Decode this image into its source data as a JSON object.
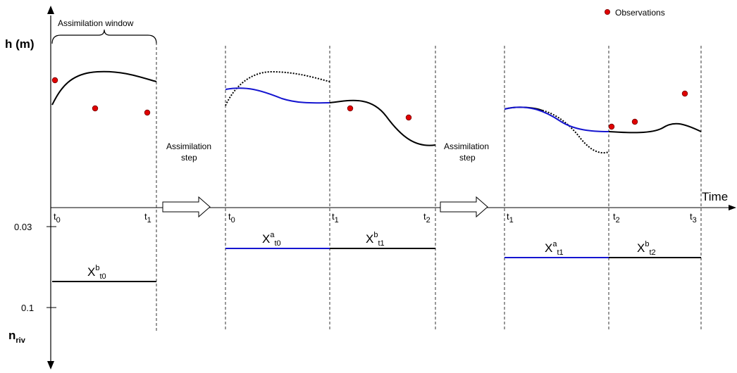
{
  "legend": {
    "observations": "Observations",
    "marker_color": "#e00000"
  },
  "y_axis": {
    "title": "h (m)"
  },
  "n_axis": {
    "title_base": "n",
    "title_sub": "riv",
    "tick_003": "0.03",
    "tick_01": "0.1"
  },
  "x_axis": {
    "title": "Time"
  },
  "window_label": "Assimilation window",
  "steps": [
    {
      "line1": "Assimilation",
      "line2": "step"
    },
    {
      "line1": "Assimilation",
      "line2": "step"
    }
  ],
  "panels": [
    {
      "ticks": [
        {
          "base": "t",
          "sub": "0"
        },
        {
          "base": "t",
          "sub": "1"
        }
      ],
      "params": [
        {
          "base": "X",
          "sup": "b",
          "sub": "t0"
        }
      ]
    },
    {
      "ticks": [
        {
          "base": "t",
          "sub": "0"
        },
        {
          "base": "t",
          "sub": "1"
        },
        {
          "base": "t",
          "sub": "2"
        }
      ],
      "params": [
        {
          "base": "X",
          "sup": "a",
          "sub": "t0"
        },
        {
          "base": "X",
          "sup": "b",
          "sub": "t1"
        }
      ]
    },
    {
      "ticks": [
        {
          "base": "t",
          "sub": "1"
        },
        {
          "base": "t",
          "sub": "2"
        },
        {
          "base": "t",
          "sub": "3"
        }
      ],
      "params": [
        {
          "base": "X",
          "sup": "a",
          "sub": "t1"
        },
        {
          "base": "X",
          "sup": "b",
          "sub": "t2"
        }
      ]
    }
  ],
  "colors": {
    "background_run": "#000000",
    "analysis_run": "#1515d0",
    "observation": "#e00000"
  }
}
